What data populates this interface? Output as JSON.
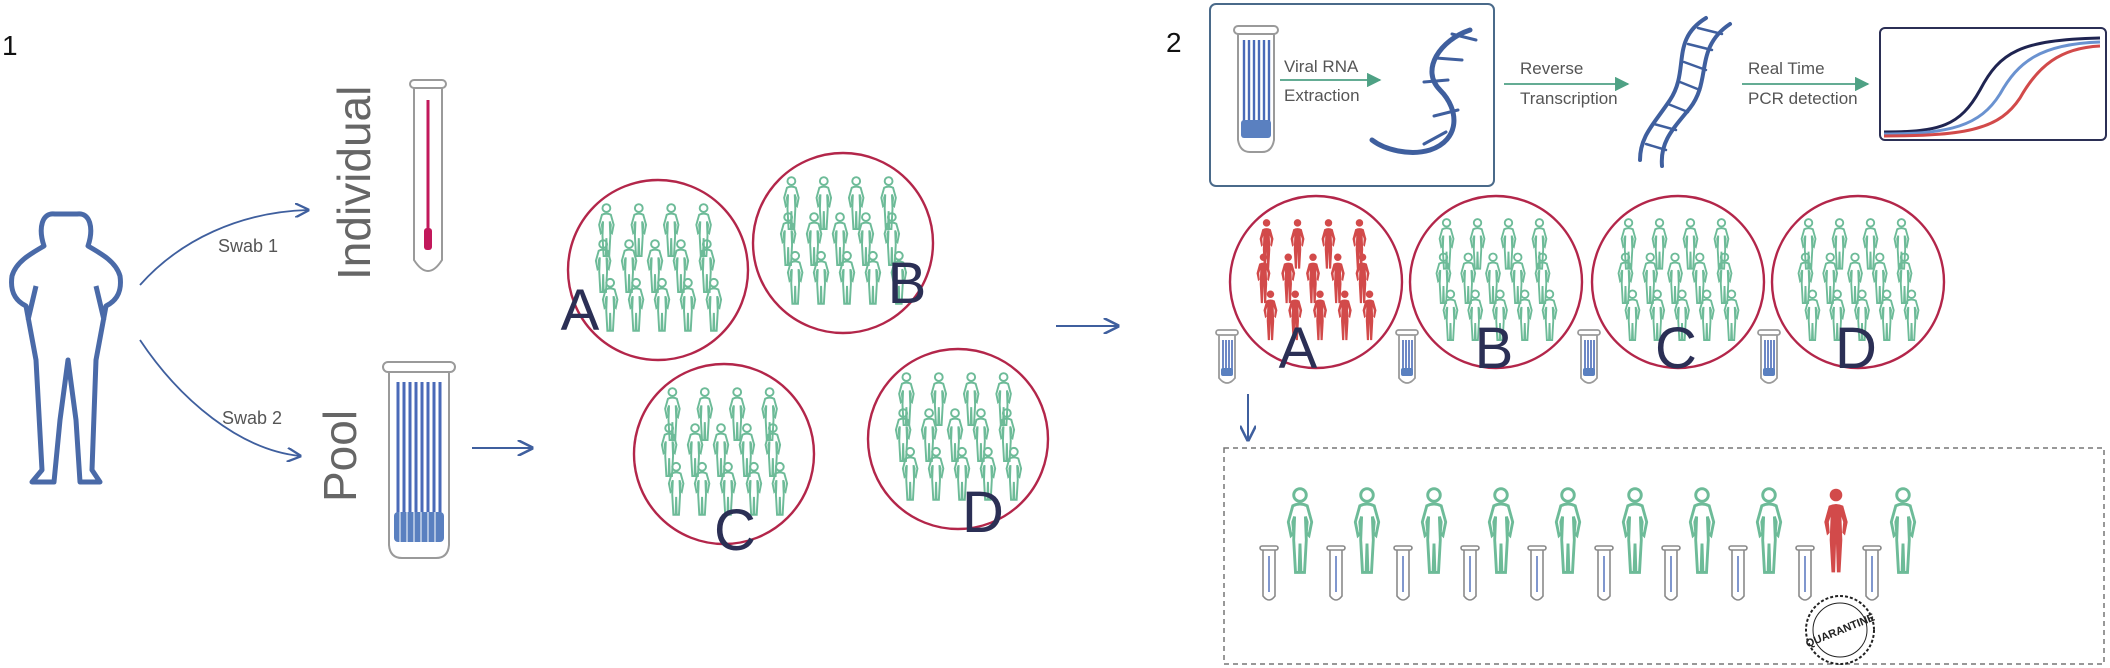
{
  "panel1": {
    "number": "1",
    "swab1": "Swab 1",
    "swab2": "Swab 2",
    "individual": "Individual",
    "pool": "Pool",
    "groups": [
      "A",
      "B",
      "C",
      "D"
    ]
  },
  "panel2": {
    "number": "2",
    "step1": [
      "Viral RNA",
      "Extraction"
    ],
    "step2": [
      "Reverse",
      "Transcription"
    ],
    "step3": [
      "Real Time",
      "PCR detection"
    ],
    "pools": [
      {
        "label": "A",
        "positive": true
      },
      {
        "label": "B",
        "positive": false
      },
      {
        "label": "C",
        "positive": false
      },
      {
        "label": "D",
        "positive": false
      }
    ],
    "individual_tests": 10,
    "positive_index": 8,
    "quarantine_stamp": "QUARANTINE"
  },
  "colors": {
    "person_outline": "#4a6aa8",
    "green_person": "#6dbb98",
    "red_person": "#d24a4a",
    "circle": "#b3264a",
    "arrow_blue": "#3f5f9e",
    "arrow_green": "#4ea184",
    "tube": "#9a9a9a",
    "tube_fill": "#5a80c0",
    "pink_fill": "#c2185b",
    "letter": "#2b2f55"
  },
  "icons": [
    "woman-icon",
    "test-tube-icon",
    "crowd-icon",
    "dna-icon",
    "pcr-curve-icon",
    "quarantine-stamp-icon"
  ]
}
